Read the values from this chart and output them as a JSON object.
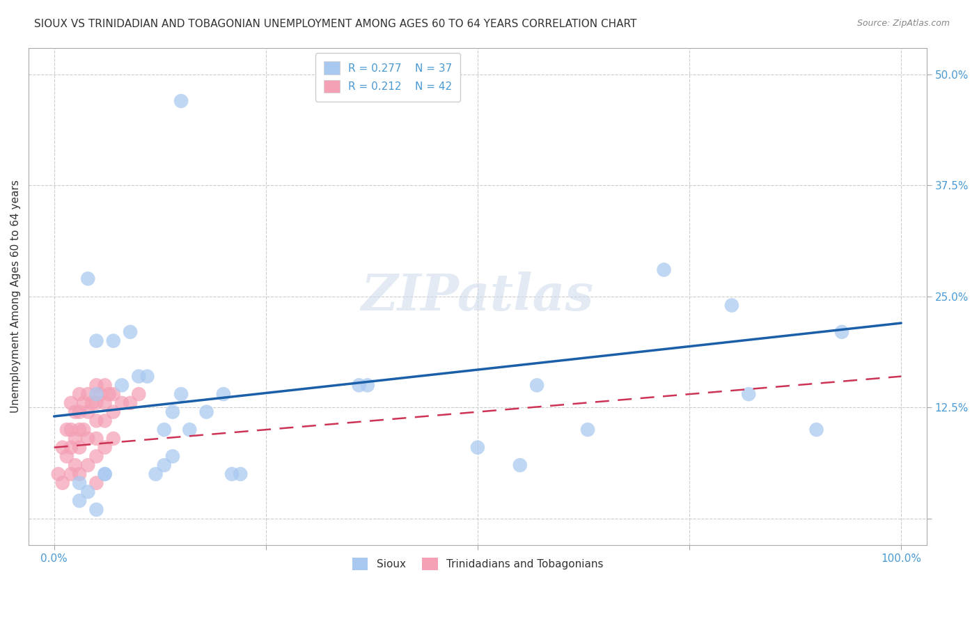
{
  "title": "SIOUX VS TRINIDADIAN AND TOBAGONIAN UNEMPLOYMENT AMONG AGES 60 TO 64 YEARS CORRELATION CHART",
  "source": "Source: ZipAtlas.com",
  "ylabel": "Unemployment Among Ages 60 to 64 years",
  "sioux_R": 0.277,
  "sioux_N": 37,
  "tnt_R": 0.212,
  "tnt_N": 42,
  "sioux_color": "#a8c8f0",
  "tnt_color": "#f4a0b5",
  "sioux_line_color": "#1a5fa8",
  "tnt_line_color": "#cc3355",
  "bg_color": "#ffffff",
  "grid_color": "#cccccc",
  "tick_color": "#4a9ad4",
  "text_color": "#333333",
  "source_color": "#888888",
  "watermark_color": "#ccdaec",
  "watermark": "ZIPatlas",
  "legend_labels": [
    "Sioux",
    "Trinidadians and Tobagonians"
  ],
  "xlim": [
    -3,
    103
  ],
  "ylim": [
    -3,
    53
  ],
  "xticks": [
    0,
    25,
    50,
    75,
    100
  ],
  "xtick_labels": [
    "0.0%",
    "",
    "",
    "",
    "100.0%"
  ],
  "yticks": [
    0,
    12.5,
    25,
    37.5,
    50
  ],
  "ytick_labels": [
    "",
    "12.5%",
    "25.0%",
    "37.5%",
    "50.0%"
  ],
  "sioux_x": [
    3,
    3,
    4,
    5,
    5,
    6,
    6,
    7,
    8,
    9,
    10,
    11,
    12,
    13,
    13,
    14,
    14,
    15,
    16,
    18,
    20,
    21,
    22,
    36,
    37,
    50,
    55,
    57,
    63,
    72,
    80,
    82,
    90,
    93,
    15,
    4,
    5
  ],
  "sioux_y": [
    4,
    2,
    3,
    1,
    14,
    5,
    5,
    20,
    15,
    21,
    16,
    16,
    5,
    10,
    6,
    12,
    7,
    14,
    10,
    12,
    14,
    5,
    5,
    15,
    15,
    8,
    6,
    15,
    10,
    28,
    24,
    14,
    10,
    21,
    47,
    27,
    20
  ],
  "tnt_x": [
    0.5,
    1,
    1,
    1.5,
    1.5,
    2,
    2,
    2,
    2,
    2.5,
    2.5,
    2.5,
    3,
    3,
    3,
    3,
    3,
    3.5,
    3.5,
    4,
    4,
    4,
    4,
    4.5,
    5,
    5,
    5,
    5,
    5,
    5,
    5.5,
    6,
    6,
    6,
    6,
    6.5,
    7,
    7,
    7,
    8,
    9,
    10
  ],
  "tnt_y": [
    5,
    8,
    4,
    10,
    7,
    13,
    10,
    8,
    5,
    12,
    9,
    6,
    14,
    12,
    10,
    8,
    5,
    13,
    10,
    14,
    12,
    9,
    6,
    13,
    15,
    13,
    11,
    9,
    7,
    4,
    14,
    15,
    13,
    11,
    8,
    14,
    14,
    12,
    9,
    13,
    13,
    14
  ],
  "sioux_trend_x0": 0,
  "sioux_trend_x1": 100,
  "sioux_trend_y0": 11.5,
  "sioux_trend_y1": 22.0,
  "tnt_trend_x0": 0,
  "tnt_trend_x1": 100,
  "tnt_trend_y0": 8.0,
  "tnt_trend_y1": 16.0,
  "title_fontsize": 11,
  "tick_fontsize": 11,
  "label_fontsize": 11,
  "legend_fontsize": 11,
  "source_fontsize": 9,
  "watermark_fontsize": 52
}
